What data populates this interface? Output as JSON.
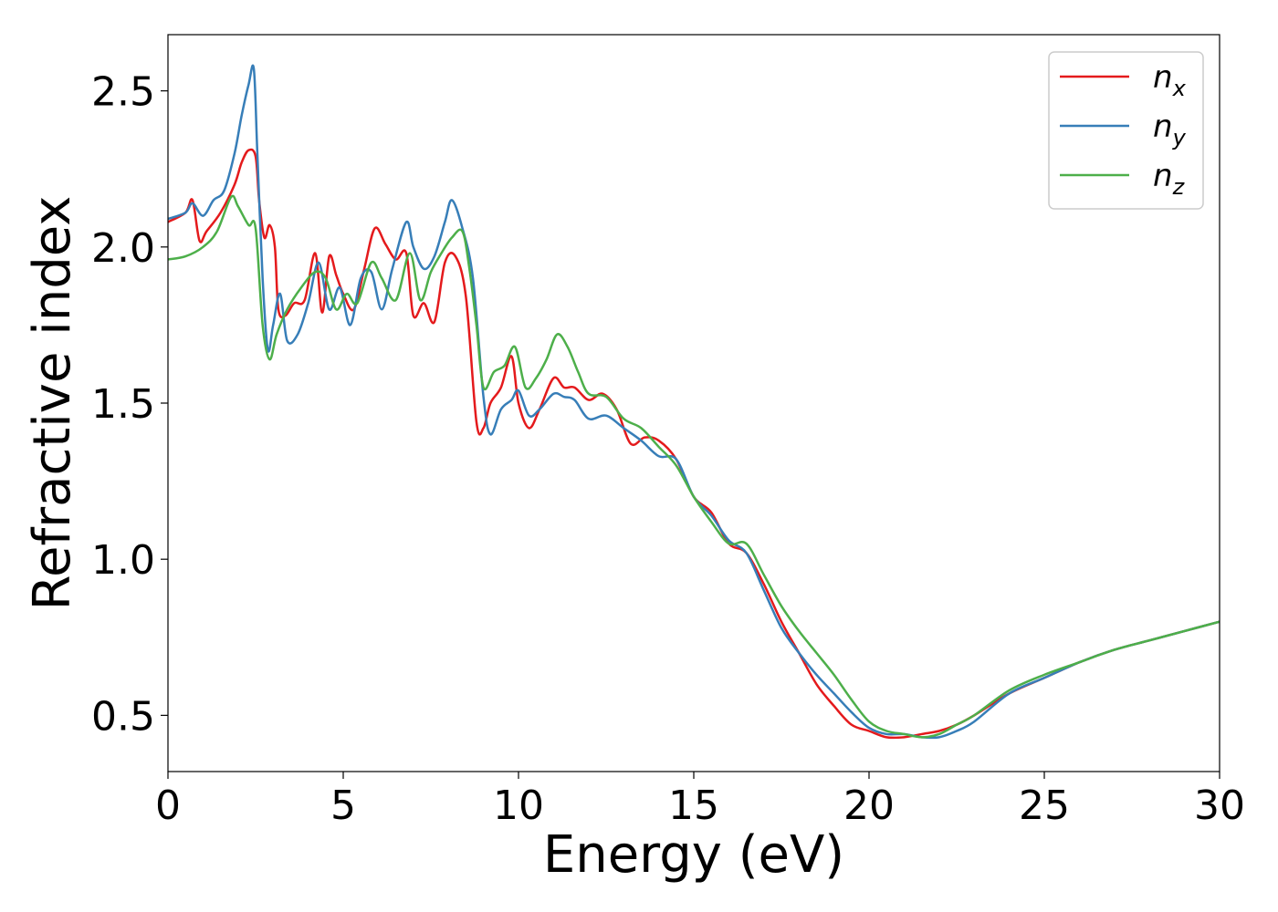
{
  "chart_data": {
    "type": "line",
    "xlabel": "Energy (eV)",
    "ylabel": "Refractive index",
    "xlim": [
      0,
      30
    ],
    "ylim": [
      0.32,
      2.68
    ],
    "xticks": [
      "0",
      "5",
      "10",
      "15",
      "20",
      "25",
      "30"
    ],
    "yticks": [
      "0.5",
      "1.0",
      "1.5",
      "2.0",
      "2.5"
    ],
    "grid": false,
    "legend_position": "top-right",
    "series": [
      {
        "name": "n",
        "subscript": "x",
        "color": "#e41a1c",
        "x": [
          0,
          0.5,
          0.7,
          0.9,
          1.1,
          1.5,
          1.9,
          2.1,
          2.3,
          2.5,
          2.6,
          2.75,
          2.9,
          3.05,
          3.15,
          3.35,
          3.6,
          3.9,
          4.2,
          4.4,
          4.6,
          4.8,
          5.0,
          5.3,
          5.6,
          5.9,
          6.2,
          6.5,
          6.8,
          7.0,
          7.3,
          7.6,
          7.9,
          8.2,
          8.5,
          8.8,
          9.0,
          9.2,
          9.5,
          9.8,
          10.0,
          10.3,
          10.6,
          11.0,
          11.3,
          11.6,
          12.0,
          12.4,
          12.8,
          13.2,
          13.6,
          14.0,
          14.5,
          15.0,
          15.5,
          16.0,
          16.5,
          17.0,
          17.5,
          18.0,
          18.5,
          19.0,
          19.5,
          20.0,
          20.5,
          21.0,
          21.5,
          22.0,
          22.5,
          23.0,
          24.0,
          25.0,
          26.0,
          27.0,
          28.0,
          29.0,
          30.0
        ],
        "values": [
          2.08,
          2.11,
          2.15,
          2.02,
          2.05,
          2.11,
          2.2,
          2.27,
          2.31,
          2.29,
          2.15,
          2.03,
          2.07,
          2.0,
          1.8,
          1.78,
          1.82,
          1.83,
          1.98,
          1.79,
          1.97,
          1.91,
          1.85,
          1.8,
          1.93,
          2.06,
          2.01,
          1.96,
          1.98,
          1.78,
          1.82,
          1.76,
          1.95,
          1.97,
          1.84,
          1.44,
          1.42,
          1.5,
          1.55,
          1.65,
          1.5,
          1.42,
          1.48,
          1.58,
          1.55,
          1.55,
          1.51,
          1.53,
          1.48,
          1.37,
          1.39,
          1.38,
          1.32,
          1.2,
          1.15,
          1.05,
          1.02,
          0.92,
          0.8,
          0.7,
          0.6,
          0.53,
          0.47,
          0.45,
          0.43,
          0.43,
          0.44,
          0.45,
          0.47,
          0.5,
          0.57,
          0.62,
          0.67,
          0.71,
          0.74,
          0.77,
          0.8
        ]
      },
      {
        "name": "n",
        "subscript": "y",
        "color": "#377eb8",
        "x": [
          0,
          0.5,
          0.7,
          1.0,
          1.3,
          1.6,
          1.9,
          2.1,
          2.3,
          2.45,
          2.55,
          2.7,
          2.85,
          3.0,
          3.2,
          3.4,
          3.7,
          4.0,
          4.3,
          4.6,
          4.9,
          5.2,
          5.5,
          5.8,
          6.1,
          6.4,
          6.8,
          7.0,
          7.3,
          7.6,
          7.9,
          8.1,
          8.4,
          8.7,
          9.0,
          9.2,
          9.5,
          9.8,
          10.0,
          10.3,
          10.6,
          11.0,
          11.3,
          11.6,
          12.0,
          12.5,
          13.0,
          13.5,
          14.0,
          14.5,
          15.0,
          15.5,
          16.0,
          16.5,
          17.0,
          17.5,
          18.0,
          18.5,
          19.0,
          19.5,
          20.0,
          20.5,
          21.0,
          21.5,
          22.0,
          22.5,
          23.0,
          24.0,
          25.0,
          26.0,
          27.0,
          28.0,
          29.0,
          30.0
        ],
        "values": [
          2.09,
          2.11,
          2.14,
          2.1,
          2.15,
          2.18,
          2.3,
          2.42,
          2.52,
          2.57,
          2.3,
          1.9,
          1.67,
          1.75,
          1.85,
          1.7,
          1.72,
          1.82,
          1.95,
          1.8,
          1.87,
          1.75,
          1.9,
          1.92,
          1.8,
          1.93,
          2.08,
          2.0,
          1.93,
          1.97,
          2.08,
          2.15,
          2.06,
          1.9,
          1.52,
          1.4,
          1.48,
          1.51,
          1.54,
          1.46,
          1.48,
          1.53,
          1.52,
          1.51,
          1.45,
          1.46,
          1.42,
          1.38,
          1.33,
          1.32,
          1.2,
          1.14,
          1.06,
          1.02,
          0.9,
          0.78,
          0.7,
          0.63,
          0.57,
          0.51,
          0.46,
          0.44,
          0.44,
          0.43,
          0.43,
          0.45,
          0.48,
          0.57,
          0.62,
          0.67,
          0.71,
          0.74,
          0.77,
          0.8
        ]
      },
      {
        "name": "n",
        "subscript": "z",
        "color": "#4daf4a",
        "x": [
          0,
          0.5,
          1.0,
          1.4,
          1.8,
          2.0,
          2.3,
          2.5,
          2.7,
          2.9,
          3.1,
          3.4,
          3.8,
          4.2,
          4.5,
          4.8,
          5.1,
          5.4,
          5.8,
          6.1,
          6.5,
          6.9,
          7.2,
          7.5,
          7.8,
          8.1,
          8.4,
          8.6,
          8.8,
          9.0,
          9.3,
          9.6,
          9.9,
          10.2,
          10.5,
          10.8,
          11.1,
          11.4,
          11.7,
          12.0,
          12.5,
          13.0,
          13.5,
          14.0,
          14.5,
          15.0,
          15.5,
          16.0,
          16.5,
          17.0,
          17.5,
          18.0,
          18.5,
          19.0,
          19.5,
          20.0,
          20.5,
          21.0,
          21.5,
          22.0,
          22.5,
          23.0,
          24.0,
          25.0,
          26.0,
          27.0,
          28.0,
          29.0,
          30.0
        ],
        "values": [
          1.96,
          1.97,
          2.0,
          2.05,
          2.16,
          2.13,
          2.07,
          2.06,
          1.75,
          1.64,
          1.72,
          1.8,
          1.87,
          1.92,
          1.9,
          1.8,
          1.85,
          1.82,
          1.95,
          1.9,
          1.83,
          1.98,
          1.83,
          1.92,
          1.98,
          2.03,
          2.05,
          1.93,
          1.75,
          1.55,
          1.6,
          1.62,
          1.68,
          1.55,
          1.58,
          1.64,
          1.72,
          1.68,
          1.6,
          1.53,
          1.52,
          1.45,
          1.42,
          1.36,
          1.3,
          1.2,
          1.12,
          1.05,
          1.05,
          0.95,
          0.85,
          0.77,
          0.7,
          0.63,
          0.55,
          0.48,
          0.45,
          0.44,
          0.43,
          0.44,
          0.47,
          0.5,
          0.58,
          0.63,
          0.67,
          0.71,
          0.74,
          0.77,
          0.8
        ]
      }
    ]
  }
}
